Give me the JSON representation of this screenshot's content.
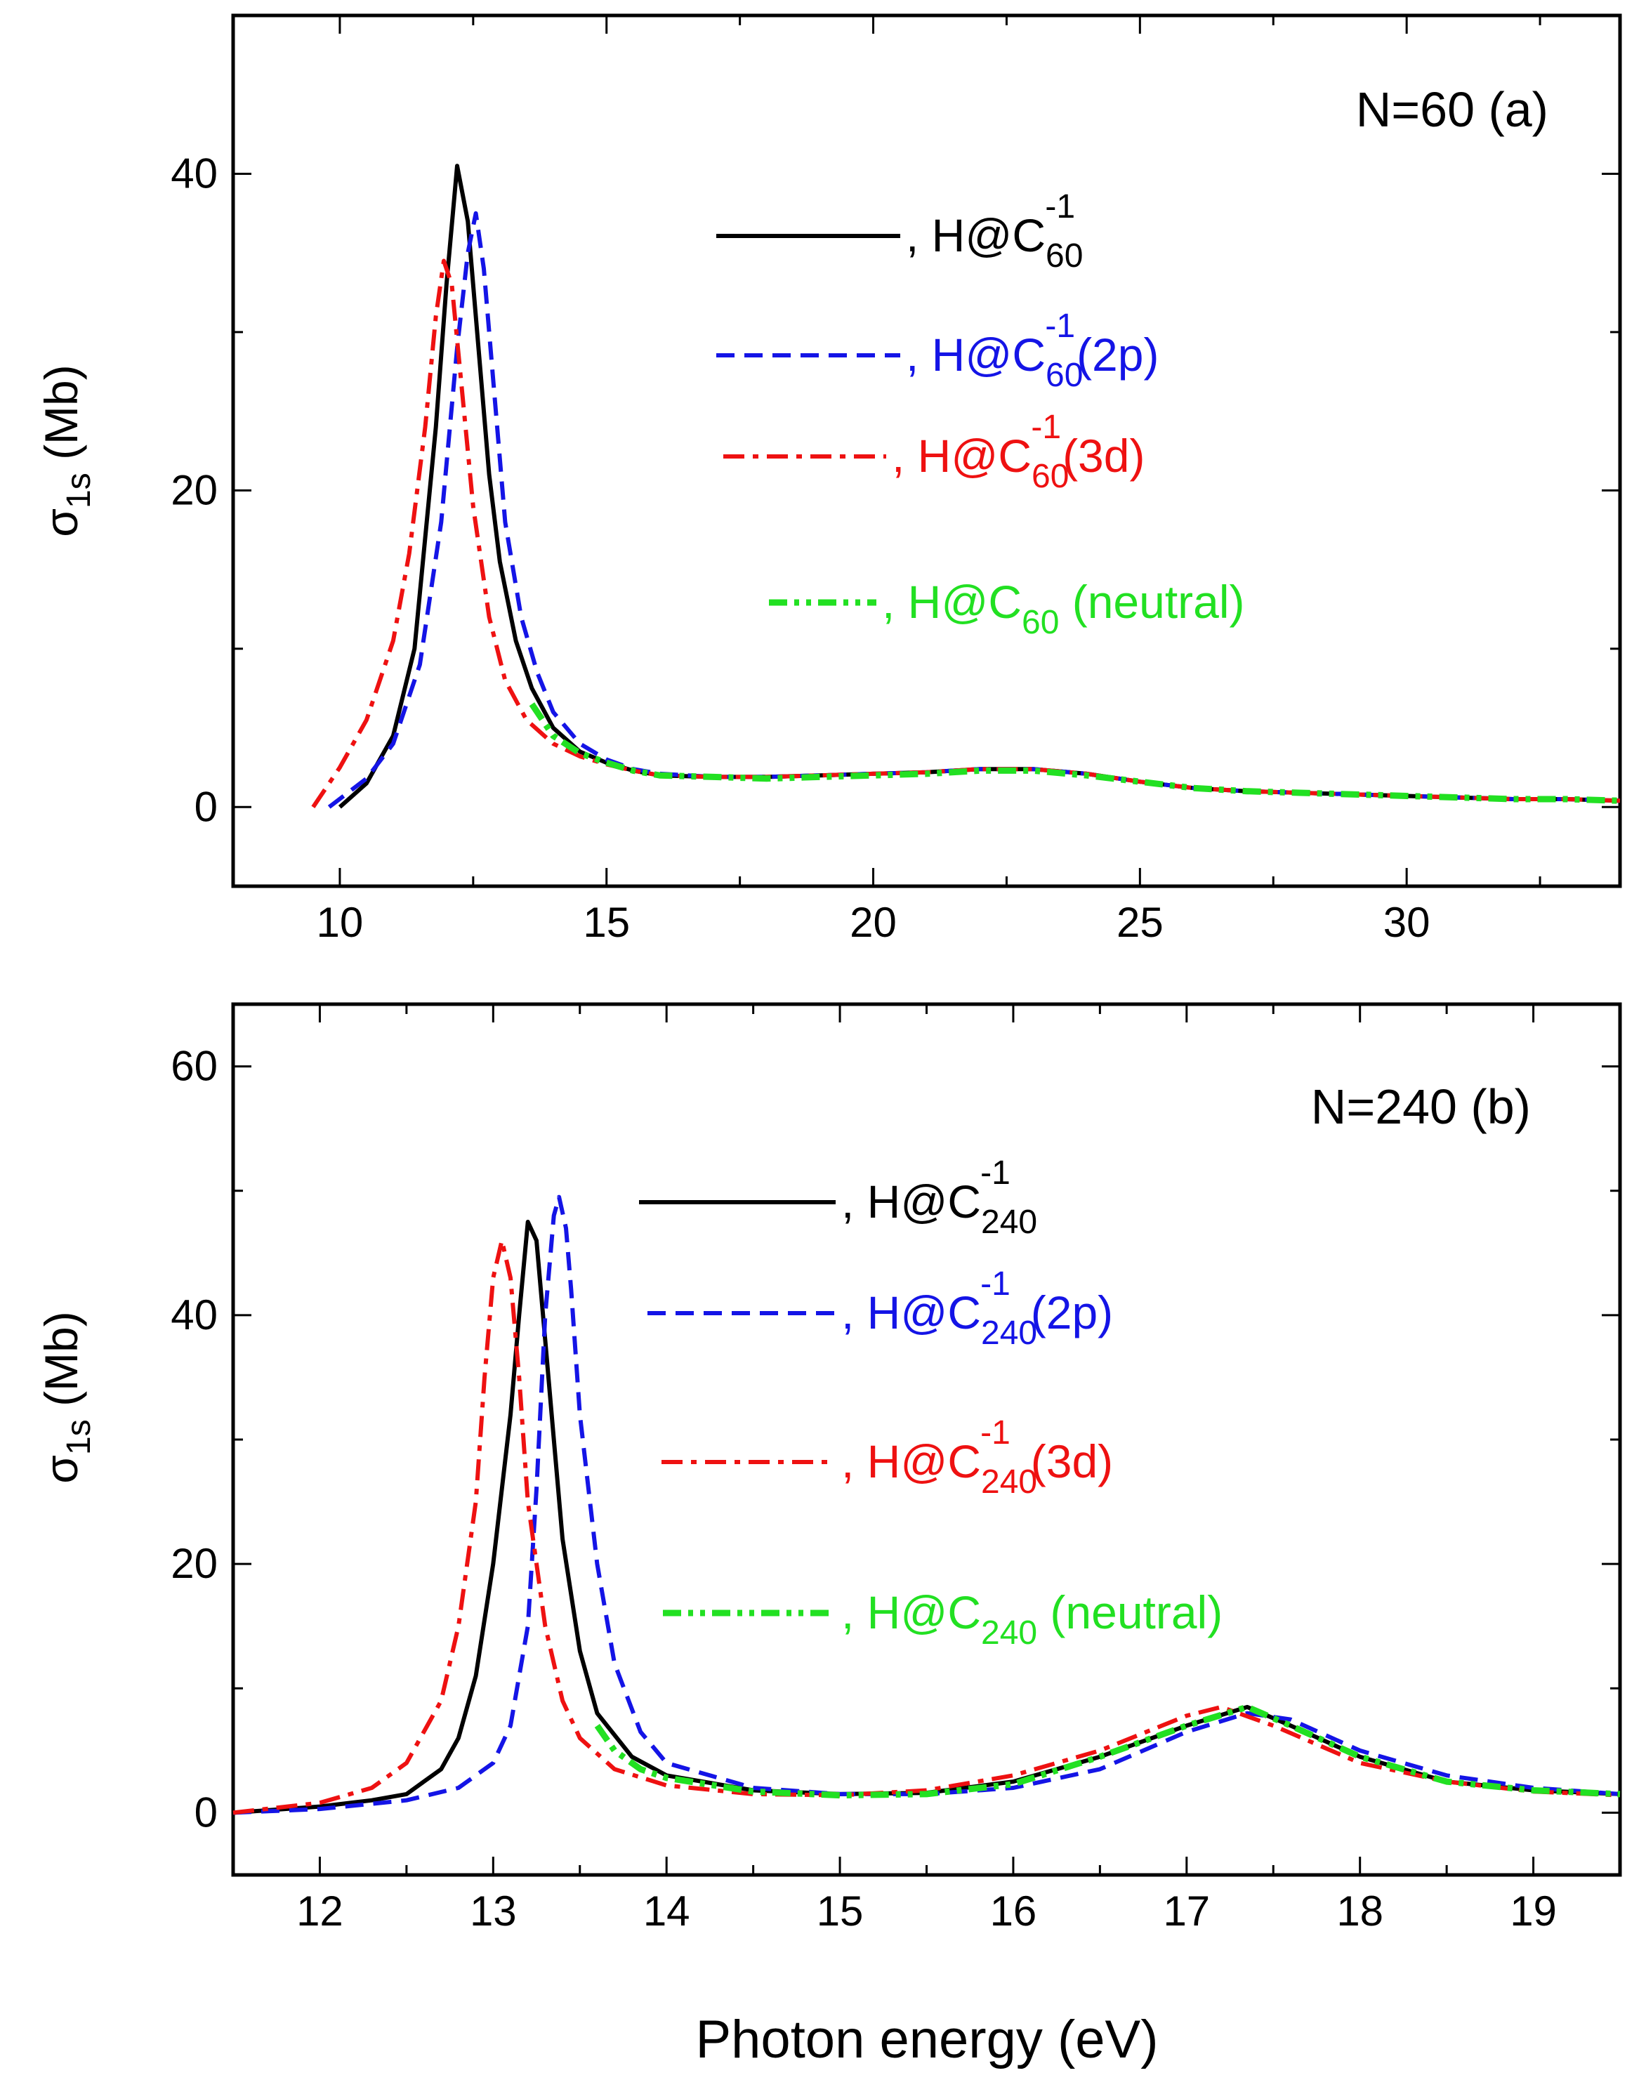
{
  "figure": {
    "xlabel": "Photon energy (eV)",
    "ylabel_main": "σ",
    "ylabel_sub": "1s",
    "ylabel_unit": " (Mb)"
  },
  "colors": {
    "black": "#000000",
    "blue": "#1414e6",
    "red": "#ee1111",
    "green": "#22e022"
  },
  "chart_data": [
    {
      "type": "line",
      "panel_label": "N=60 (a)",
      "xlim": [
        8,
        34
      ],
      "ylim": [
        -5,
        50
      ],
      "xticks": [
        10,
        15,
        20,
        25,
        30
      ],
      "yticks": [
        0,
        20,
        40
      ],
      "xlabel": "",
      "ylabel": "σ1s (Mb)",
      "legend_position": "top-right",
      "series": [
        {
          "name": "H@C60-1",
          "legend": {
            "pre": ", H@C",
            "sub": "60",
            "sup": "-1",
            "post": ""
          },
          "color": "#000000",
          "dash": "solid",
          "x": [
            10.0,
            10.5,
            11.0,
            11.4,
            11.8,
            12.0,
            12.2,
            12.4,
            12.6,
            12.8,
            13.0,
            13.3,
            13.6,
            14.0,
            14.5,
            15.0,
            15.5,
            16.0,
            17.0,
            18.0,
            19.0,
            20.0,
            21.0,
            22.0,
            23.0,
            24.0,
            25.0,
            26.0,
            27.0,
            28.0,
            29.0,
            30.0,
            31.0,
            32.0,
            33.0,
            34.0
          ],
          "y": [
            0.0,
            1.5,
            4.5,
            10.0,
            24.0,
            33.0,
            40.5,
            37.0,
            29.0,
            21.0,
            15.5,
            10.5,
            7.5,
            5.0,
            3.5,
            2.8,
            2.3,
            2.0,
            1.9,
            1.9,
            2.0,
            2.1,
            2.2,
            2.4,
            2.4,
            2.1,
            1.6,
            1.2,
            1.0,
            0.9,
            0.8,
            0.7,
            0.6,
            0.5,
            0.5,
            0.4
          ]
        },
        {
          "name": "H@C60-1(2p)",
          "legend": {
            "pre": ", H@C",
            "sub": "60",
            "sup": "-1",
            "post": "(2p)"
          },
          "color": "#1414e6",
          "dash": "dashed",
          "x": [
            9.8,
            10.5,
            11.0,
            11.5,
            11.9,
            12.2,
            12.4,
            12.55,
            12.7,
            12.9,
            13.1,
            13.4,
            13.7,
            14.0,
            14.5,
            15.0,
            15.5,
            16.0,
            17.0,
            18.0,
            19.0,
            20.0,
            21.0,
            22.0,
            23.0,
            24.0,
            25.0,
            26.0,
            27.0,
            28.0,
            29.0,
            30.0,
            31.0,
            32.0,
            33.0,
            34.0
          ],
          "y": [
            0.0,
            1.8,
            4.0,
            9.0,
            18.0,
            29.0,
            35.0,
            37.5,
            34.0,
            26.0,
            18.0,
            12.0,
            8.5,
            6.0,
            4.0,
            3.0,
            2.4,
            2.1,
            1.9,
            1.9,
            2.0,
            2.1,
            2.2,
            2.4,
            2.4,
            2.1,
            1.6,
            1.2,
            1.0,
            0.9,
            0.8,
            0.7,
            0.6,
            0.5,
            0.5,
            0.4
          ]
        },
        {
          "name": "H@C60-1(3d)",
          "legend": {
            "pre": ", H@C",
            "sub": "60",
            "sup": "-1",
            "post": "(3d)"
          },
          "color": "#ee1111",
          "dash": "dashdot",
          "x": [
            9.5,
            10.0,
            10.5,
            11.0,
            11.3,
            11.6,
            11.8,
            11.95,
            12.1,
            12.3,
            12.5,
            12.8,
            13.1,
            13.5,
            14.0,
            14.5,
            15.0,
            15.5,
            16.0,
            17.0,
            18.0,
            19.0,
            20.0,
            21.0,
            22.0,
            23.0,
            24.0,
            25.0,
            26.0,
            27.0,
            28.0,
            29.0,
            30.0,
            31.0,
            32.0,
            33.0,
            34.0
          ],
          "y": [
            0.0,
            2.5,
            5.5,
            10.5,
            16.0,
            24.0,
            31.0,
            34.5,
            33.0,
            26.0,
            19.0,
            12.0,
            8.0,
            5.5,
            4.0,
            3.2,
            2.7,
            2.3,
            2.0,
            1.9,
            1.9,
            2.0,
            2.1,
            2.2,
            2.4,
            2.4,
            2.1,
            1.6,
            1.2,
            1.0,
            0.9,
            0.8,
            0.7,
            0.6,
            0.5,
            0.5,
            0.4
          ]
        },
        {
          "name": "H@C60 (neutral)",
          "legend": {
            "pre": ", H@C",
            "sub": "60",
            "sup": "",
            "post": " (neutral)"
          },
          "color": "#22e022",
          "dash": "dashdotdot",
          "x": [
            13.6,
            14.0,
            14.5,
            15.0,
            15.5,
            16.0,
            17.0,
            18.0,
            19.0,
            20.0,
            21.0,
            22.0,
            23.0,
            24.0,
            25.0,
            26.0,
            27.0,
            28.0,
            29.0,
            30.0,
            31.0,
            32.0,
            33.0,
            34.0
          ],
          "y": [
            6.5,
            4.5,
            3.4,
            2.8,
            2.3,
            2.0,
            1.9,
            1.8,
            1.9,
            2.0,
            2.1,
            2.3,
            2.3,
            2.0,
            1.6,
            1.2,
            1.0,
            0.9,
            0.8,
            0.7,
            0.6,
            0.5,
            0.5,
            0.4
          ]
        }
      ]
    },
    {
      "type": "line",
      "panel_label": "N=240 (b)",
      "xlim": [
        11.5,
        19.5
      ],
      "ylim": [
        -5,
        65
      ],
      "xticks": [
        12,
        13,
        14,
        15,
        16,
        17,
        18,
        19
      ],
      "yticks": [
        0,
        20,
        40,
        60
      ],
      "xlabel": "Photon energy (eV)",
      "ylabel": "σ1s (Mb)",
      "legend_position": "top-right",
      "series": [
        {
          "name": "H@C240-1",
          "legend": {
            "pre": ", H@C",
            "sub": "240",
            "sup": "-1",
            "post": ""
          },
          "color": "#000000",
          "dash": "solid",
          "x": [
            11.5,
            12.0,
            12.3,
            12.5,
            12.6,
            12.7,
            12.8,
            12.9,
            13.0,
            13.1,
            13.15,
            13.2,
            13.25,
            13.3,
            13.35,
            13.4,
            13.5,
            13.6,
            13.8,
            14.0,
            14.5,
            15.0,
            15.5,
            16.0,
            16.5,
            17.0,
            17.35,
            17.6,
            18.0,
            18.5,
            19.0,
            19.5
          ],
          "y": [
            0.0,
            0.5,
            1.0,
            1.5,
            2.5,
            3.5,
            6.0,
            11.0,
            20.0,
            32.0,
            40.0,
            47.5,
            46.0,
            38.0,
            30.0,
            22.0,
            13.0,
            8.0,
            4.5,
            3.0,
            1.8,
            1.5,
            1.6,
            2.5,
            4.5,
            7.0,
            8.5,
            7.0,
            4.5,
            2.5,
            1.8,
            1.5
          ]
        },
        {
          "name": "H@C240-1(2p)",
          "legend": {
            "pre": ", H@C",
            "sub": "240",
            "sup": "-1",
            "post": "(2p)"
          },
          "color": "#1414e6",
          "dash": "dashed",
          "x": [
            11.5,
            12.0,
            12.5,
            12.8,
            13.0,
            13.1,
            13.2,
            13.25,
            13.3,
            13.35,
            13.38,
            13.42,
            13.45,
            13.5,
            13.6,
            13.7,
            13.85,
            14.0,
            14.5,
            15.0,
            15.5,
            16.0,
            16.5,
            17.0,
            17.35,
            17.6,
            18.0,
            18.5,
            19.0,
            19.5
          ],
          "y": [
            0.0,
            0.3,
            1.0,
            2.0,
            4.0,
            7.0,
            15.0,
            26.0,
            40.0,
            48.0,
            49.5,
            47.0,
            42.0,
            32.0,
            20.0,
            12.0,
            6.5,
            4.0,
            2.0,
            1.5,
            1.5,
            2.0,
            3.5,
            6.5,
            8.0,
            7.5,
            5.0,
            3.0,
            2.0,
            1.5
          ]
        },
        {
          "name": "H@C240-1(3d)",
          "legend": {
            "pre": ", H@C",
            "sub": "240",
            "sup": "-1",
            "post": "(3d)"
          },
          "color": "#ee1111",
          "dash": "dashdot",
          "x": [
            11.5,
            12.0,
            12.3,
            12.5,
            12.7,
            12.8,
            12.9,
            12.95,
            13.0,
            13.05,
            13.1,
            13.15,
            13.2,
            13.3,
            13.4,
            13.5,
            13.7,
            14.0,
            14.5,
            15.0,
            15.5,
            16.0,
            16.5,
            17.0,
            17.2,
            17.5,
            18.0,
            18.5,
            19.0,
            19.5
          ],
          "y": [
            0.0,
            0.8,
            2.0,
            4.0,
            9.0,
            15.0,
            25.0,
            35.0,
            43.0,
            46.0,
            43.0,
            35.0,
            25.0,
            15.0,
            9.0,
            6.0,
            3.5,
            2.2,
            1.5,
            1.4,
            1.8,
            3.0,
            5.0,
            7.8,
            8.5,
            7.0,
            4.0,
            2.5,
            1.7,
            1.4
          ]
        },
        {
          "name": "H@C240 (neutral)",
          "legend": {
            "pre": ", H@C",
            "sub": "240",
            "sup": "",
            "post": " (neutral)"
          },
          "color": "#22e022",
          "dash": "dashdotdot",
          "x": [
            13.6,
            13.7,
            13.85,
            14.0,
            14.5,
            15.0,
            15.5,
            16.0,
            16.5,
            17.0,
            17.35,
            17.6,
            18.0,
            18.5,
            19.0,
            19.5
          ],
          "y": [
            7.0,
            5.0,
            3.5,
            2.8,
            1.7,
            1.4,
            1.5,
            2.3,
            4.5,
            7.0,
            8.5,
            7.0,
            4.5,
            2.5,
            1.8,
            1.5
          ]
        }
      ]
    }
  ]
}
